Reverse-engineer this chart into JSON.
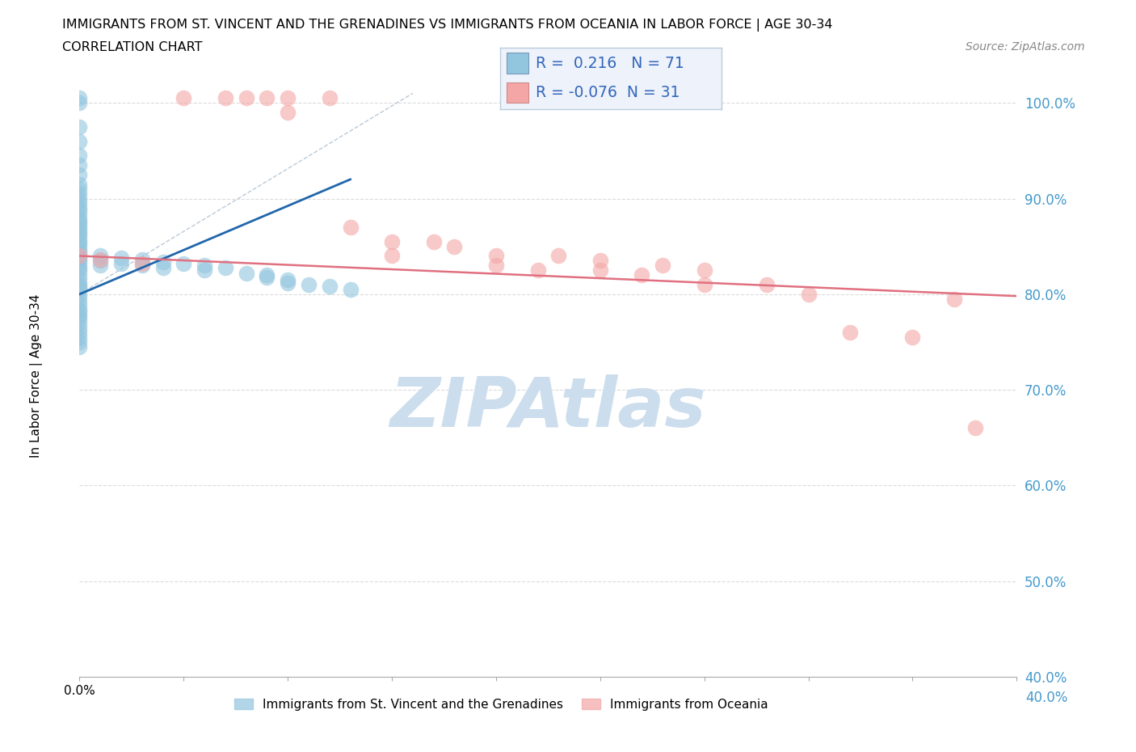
{
  "title_line1": "IMMIGRANTS FROM ST. VINCENT AND THE GRENADINES VS IMMIGRANTS FROM OCEANIA IN LABOR FORCE | AGE 30-34",
  "title_line2": "CORRELATION CHART",
  "source_text": "Source: ZipAtlas.com",
  "ylabel": "In Labor Force | Age 30-34",
  "x_min": 0.0,
  "x_max": 0.045,
  "y_min": 0.4,
  "y_max": 1.025,
  "blue_R": 0.216,
  "blue_N": 71,
  "pink_R": -0.076,
  "pink_N": 31,
  "blue_color": "#92c5de",
  "pink_color": "#f4a6a6",
  "blue_line_color": "#2166ac",
  "pink_line_color": "#e07080",
  "blue_tick_color": "#4499cc",
  "watermark_text": "ZIPAtlas",
  "watermark_color": "#ccdded",
  "legend_box_color": "#eef2fa",
  "legend_text_color": "#3366bb",
  "grid_color": "#cccccc",
  "blue_scatter_x": [
    0.0,
    0.0,
    0.0,
    0.0,
    0.0,
    0.0,
    0.0,
    0.0,
    0.0,
    0.0,
    0.0,
    0.0,
    0.0,
    0.0,
    0.0,
    0.0,
    0.0,
    0.0,
    0.0,
    0.0,
    0.0,
    0.0,
    0.0,
    0.0,
    0.0,
    0.0,
    0.0,
    0.0,
    0.0,
    0.0,
    0.0,
    0.0,
    0.0,
    0.0,
    0.0,
    0.0,
    0.0,
    0.0,
    0.0,
    0.0,
    0.0,
    0.0,
    0.0,
    0.0,
    0.0,
    0.0,
    0.0,
    0.0,
    0.0,
    0.0,
    0.001,
    0.001,
    0.001,
    0.002,
    0.002,
    0.003,
    0.003,
    0.004,
    0.004,
    0.005,
    0.006,
    0.006,
    0.007,
    0.008,
    0.009,
    0.009,
    0.01,
    0.01,
    0.011,
    0.012,
    0.013
  ],
  "blue_scatter_y": [
    1.005,
    1.0,
    0.975,
    0.96,
    0.945,
    0.935,
    0.925,
    0.915,
    0.91,
    0.905,
    0.9,
    0.895,
    0.89,
    0.887,
    0.882,
    0.878,
    0.875,
    0.872,
    0.868,
    0.865,
    0.862,
    0.858,
    0.855,
    0.852,
    0.848,
    0.845,
    0.842,
    0.838,
    0.835,
    0.832,
    0.828,
    0.825,
    0.82,
    0.815,
    0.81,
    0.808,
    0.805,
    0.8,
    0.795,
    0.79,
    0.785,
    0.782,
    0.778,
    0.775,
    0.77,
    0.765,
    0.76,
    0.755,
    0.75,
    0.745,
    0.84,
    0.835,
    0.83,
    0.838,
    0.832,
    0.836,
    0.83,
    0.834,
    0.828,
    0.832,
    0.83,
    0.825,
    0.828,
    0.822,
    0.82,
    0.818,
    0.815,
    0.812,
    0.81,
    0.808,
    0.805
  ],
  "pink_scatter_x": [
    0.0,
    0.001,
    0.003,
    0.005,
    0.007,
    0.008,
    0.009,
    0.01,
    0.01,
    0.012,
    0.013,
    0.015,
    0.015,
    0.017,
    0.018,
    0.02,
    0.02,
    0.022,
    0.023,
    0.025,
    0.025,
    0.027,
    0.028,
    0.03,
    0.03,
    0.033,
    0.035,
    0.037,
    0.04,
    0.042,
    0.043
  ],
  "pink_scatter_y": [
    0.84,
    0.836,
    0.832,
    1.005,
    1.005,
    1.005,
    1.005,
    1.005,
    0.99,
    1.005,
    0.87,
    0.855,
    0.84,
    0.855,
    0.85,
    0.84,
    0.83,
    0.825,
    0.84,
    0.825,
    0.835,
    0.82,
    0.83,
    0.825,
    0.81,
    0.81,
    0.8,
    0.76,
    0.755,
    0.795,
    0.66
  ],
  "pink_line_x0": 0.0,
  "pink_line_y0": 0.84,
  "pink_line_x1": 0.045,
  "pink_line_y1": 0.798,
  "blue_line_x0": 0.0,
  "blue_line_y0": 0.8,
  "blue_line_x1": 0.013,
  "blue_line_y1": 0.92,
  "ref_line_x0": 0.0,
  "ref_line_y0": 0.8,
  "ref_line_x1": 0.016,
  "ref_line_y1": 1.01
}
